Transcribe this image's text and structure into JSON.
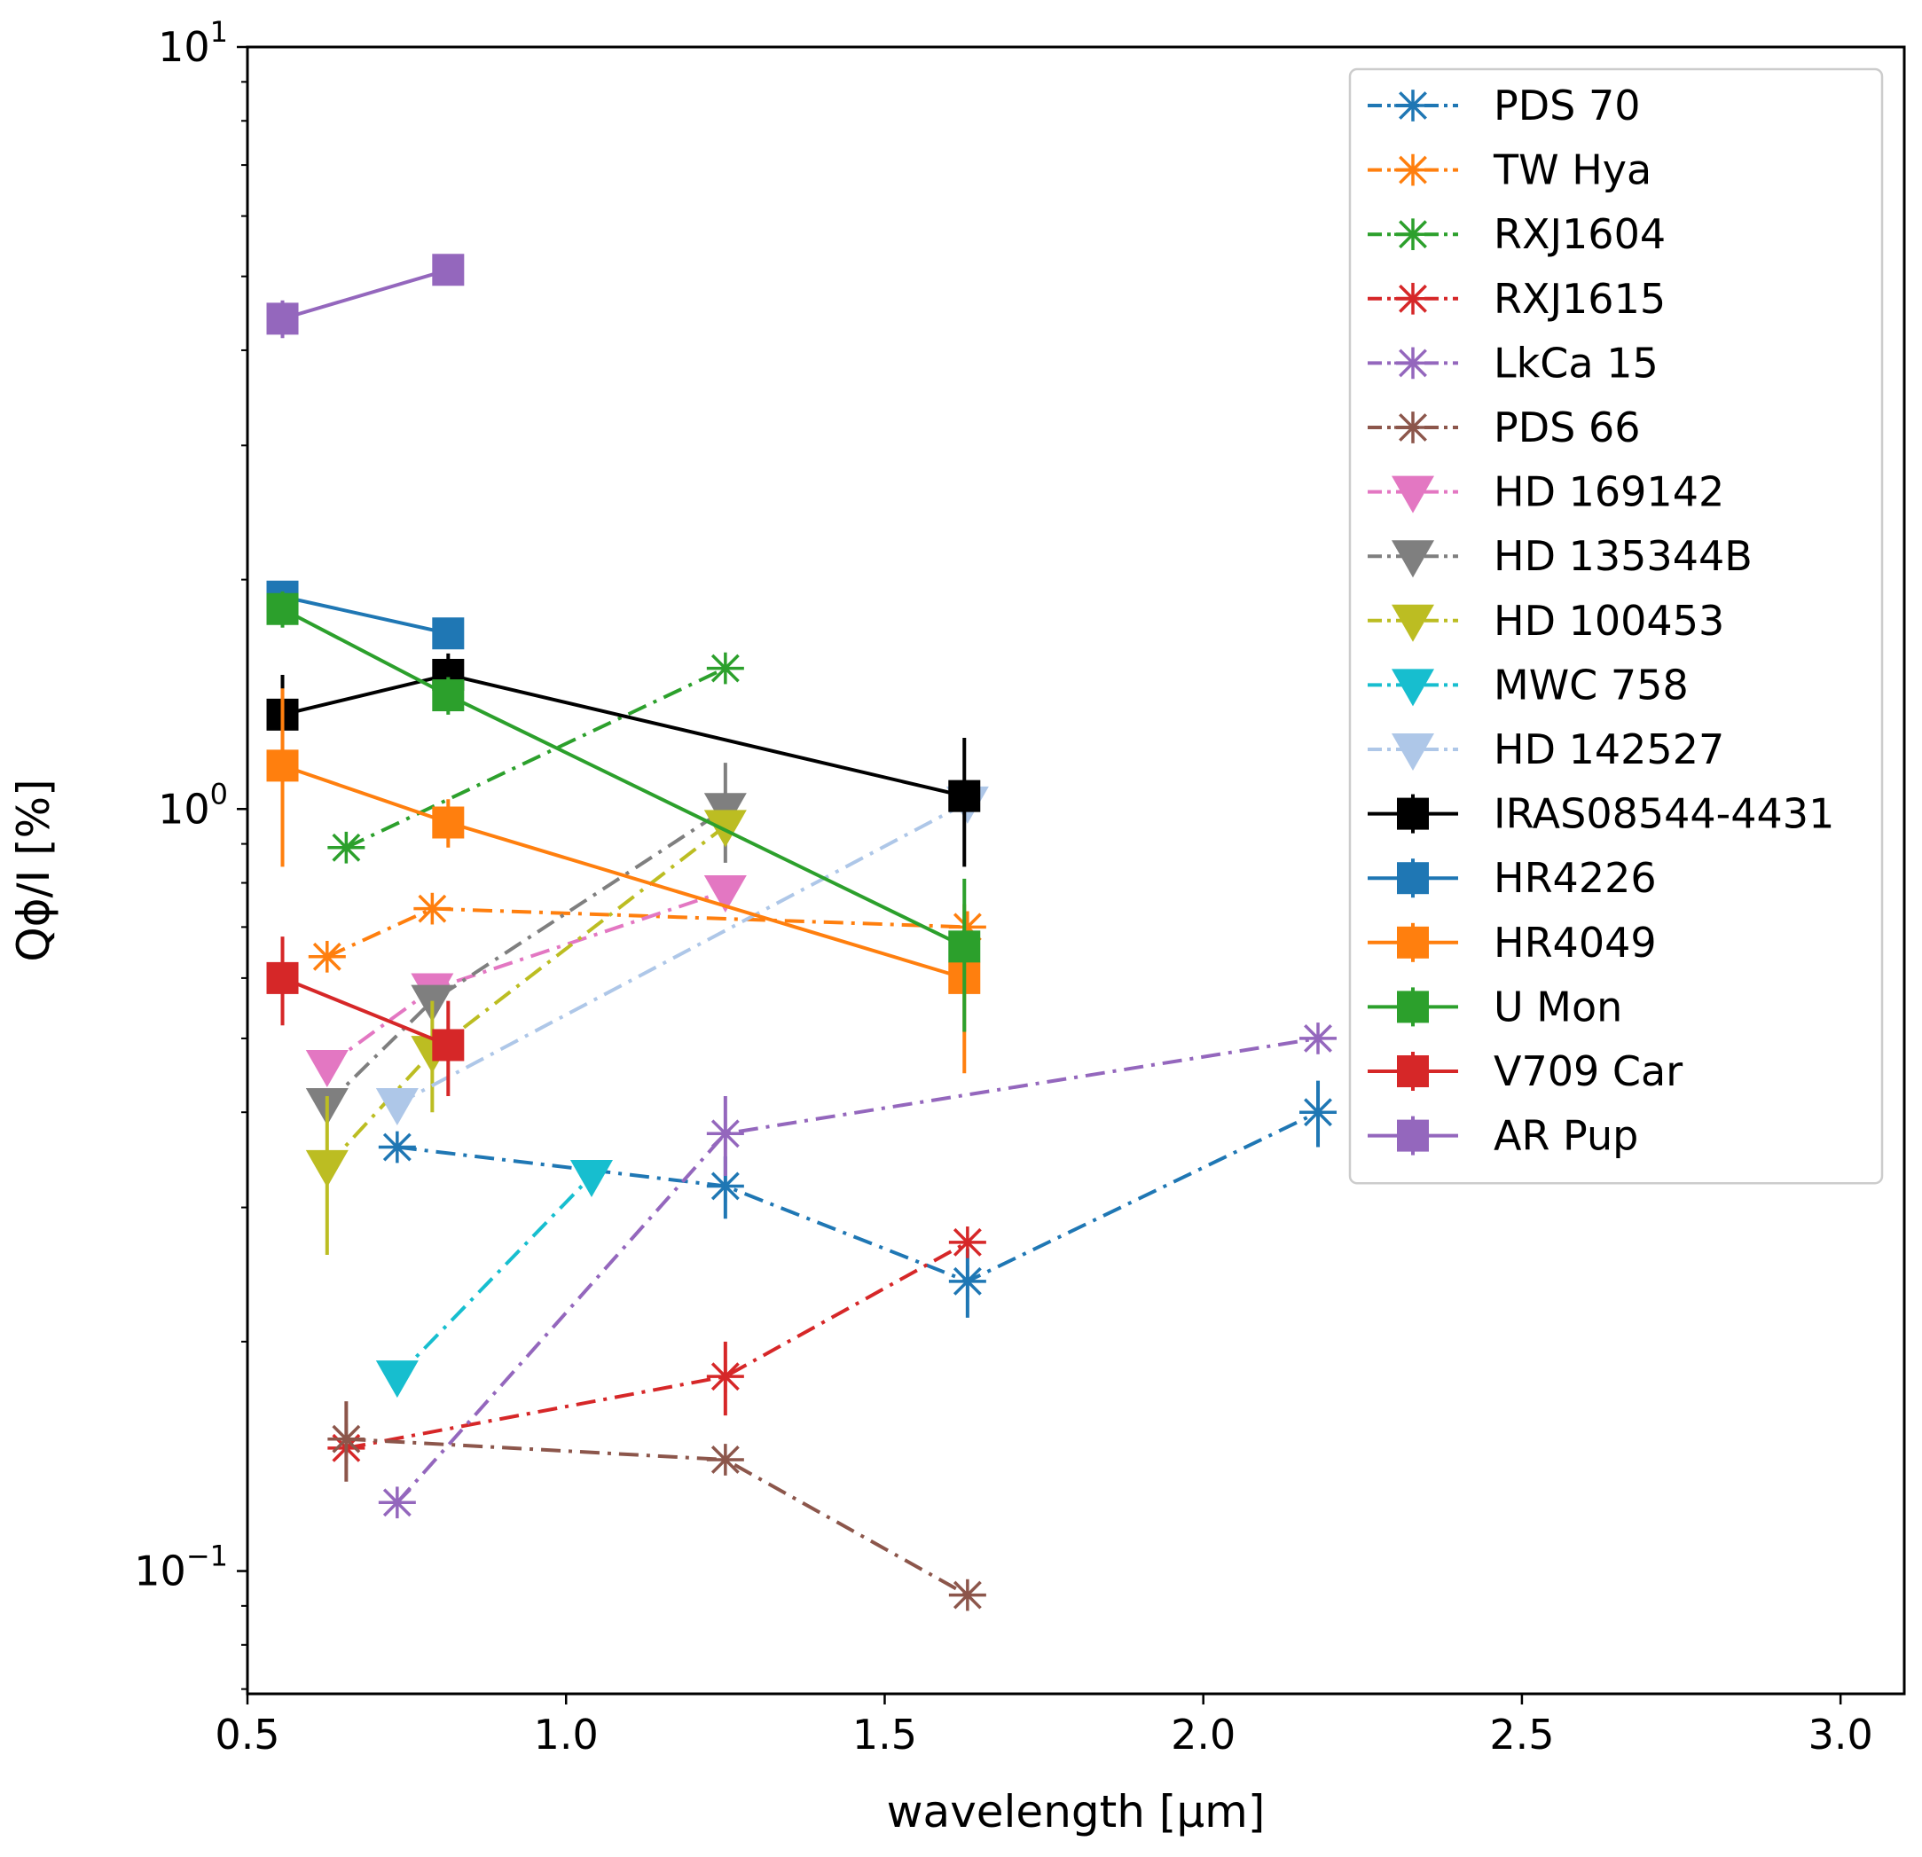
{
  "chart_data": {
    "type": "scatter",
    "xlabel": "wavelength [μm]",
    "ylabel": "Qϕ/I [%]",
    "xscale": "linear",
    "yscale": "log",
    "xlim": [
      0.5,
      3.1
    ],
    "ylim": [
      0.069,
      10
    ],
    "xticks": [
      0.5,
      1.0,
      1.5,
      2.0,
      2.5,
      3.0
    ],
    "xtick_labels": [
      "0.5",
      "1.0",
      "1.5",
      "2.0",
      "2.5",
      "3.0"
    ],
    "yticks": [
      {
        "value": 10,
        "base": "10",
        "exp": "1"
      },
      {
        "value": 1,
        "base": "10",
        "exp": "0"
      },
      {
        "value": 0.1,
        "base": "10",
        "exp": "−1"
      }
    ],
    "legend_position": "upper right",
    "series": [
      {
        "name": "PDS 70",
        "color": "#1f77b4",
        "marker": "asterisk",
        "linestyle": "dashdot",
        "x": [
          0.735,
          1.25,
          1.63,
          2.18
        ],
        "y": [
          0.36,
          0.32,
          0.24,
          0.4
        ],
        "err": [
          0.0,
          0.03,
          0.025,
          0.04
        ]
      },
      {
        "name": "TW Hya",
        "color": "#ff7f0e",
        "marker": "asterisk",
        "linestyle": "dashdot",
        "x": [
          0.625,
          0.79,
          1.63
        ],
        "y": [
          0.64,
          0.74,
          0.7
        ],
        "err": [
          0.0,
          0.0,
          0.0
        ]
      },
      {
        "name": "RXJ1604",
        "color": "#2ca02c",
        "marker": "asterisk",
        "linestyle": "dashdot",
        "x": [
          0.655,
          1.25
        ],
        "y": [
          0.89,
          1.53
        ],
        "err": [
          0.0,
          0.0
        ]
      },
      {
        "name": "RXJ1615",
        "color": "#d62728",
        "marker": "asterisk",
        "linestyle": "dashdot",
        "x": [
          0.655,
          1.25,
          1.63
        ],
        "y": [
          0.145,
          0.18,
          0.27
        ],
        "err": [
          0.0,
          0.02,
          0.0
        ]
      },
      {
        "name": "LkCa 15",
        "color": "#9467bd",
        "marker": "asterisk",
        "linestyle": "dashdot",
        "x": [
          0.735,
          1.25,
          2.18
        ],
        "y": [
          0.123,
          0.375,
          0.5
        ],
        "err": [
          0.0,
          0.045,
          0.0
        ]
      },
      {
        "name": "PDS 66",
        "color": "#8c564b",
        "marker": "asterisk",
        "linestyle": "dashdot",
        "x": [
          0.655,
          1.25,
          1.63
        ],
        "y": [
          0.149,
          0.14,
          0.093
        ],
        "err": [
          0.018,
          0.0,
          0.0
        ]
      },
      {
        "name": "HD 169142",
        "color": "#e377c2",
        "marker": "triangle_down",
        "linestyle": "dashdot",
        "x": [
          0.625,
          0.79,
          1.25
        ],
        "y": [
          0.46,
          0.58,
          0.78
        ],
        "err": [
          0.0,
          0.0,
          0.0
        ]
      },
      {
        "name": "HD 135344B",
        "color": "#7f7f7f",
        "marker": "triangle_down",
        "linestyle": "dashdot",
        "x": [
          0.625,
          0.79,
          1.25
        ],
        "y": [
          0.41,
          0.56,
          1.0
        ],
        "err": [
          0.0,
          0.0,
          0.15
        ]
      },
      {
        "name": "HD 100453",
        "color": "#bcbd22",
        "marker": "triangle_down",
        "linestyle": "dashdot",
        "x": [
          0.625,
          0.79,
          1.25
        ],
        "y": [
          0.34,
          0.48,
          0.95
        ],
        "err": [
          0.08,
          0.08,
          0.0
        ]
      },
      {
        "name": "MWC 758",
        "color": "#17becf",
        "marker": "triangle_down",
        "linestyle": "dashdot",
        "x": [
          0.735,
          1.04
        ],
        "y": [
          0.18,
          0.33
        ],
        "err": [
          0.0,
          0.0
        ]
      },
      {
        "name": "HD 142527",
        "color": "#aec7e8",
        "marker": "triangle_down",
        "linestyle": "dashdot",
        "x": [
          0.735,
          1.63
        ],
        "y": [
          0.41,
          1.02
        ],
        "err": [
          0.0,
          0.0
        ]
      },
      {
        "name": "IRAS08544-4431",
        "color": "#000000",
        "marker": "square",
        "linestyle": "solid",
        "x": [
          0.555,
          0.815,
          1.625
        ],
        "y": [
          1.33,
          1.5,
          1.04
        ],
        "err": [
          0.17,
          0.1,
          0.2
        ]
      },
      {
        "name": "HR4226",
        "color": "#1f77b4",
        "marker": "square",
        "linestyle": "solid",
        "x": [
          0.555,
          0.815
        ],
        "y": [
          1.9,
          1.7
        ],
        "err": [
          0.0,
          0.0
        ]
      },
      {
        "name": "HR4049",
        "color": "#ff7f0e",
        "marker": "square",
        "linestyle": "solid",
        "x": [
          0.555,
          0.815,
          1.625
        ],
        "y": [
          1.14,
          0.96,
          0.6
        ],
        "err": [
          0.3,
          0.07,
          0.15
        ]
      },
      {
        "name": "U Mon",
        "color": "#2ca02c",
        "marker": "square",
        "linestyle": "solid",
        "x": [
          0.555,
          0.815,
          1.625
        ],
        "y": [
          1.83,
          1.41,
          0.66
        ],
        "err": [
          0.1,
          0.08,
          0.15
        ]
      },
      {
        "name": "V709 Car",
        "color": "#d62728",
        "marker": "square",
        "linestyle": "solid",
        "x": [
          0.555,
          0.815
        ],
        "y": [
          0.6,
          0.49
        ],
        "err": [
          0.08,
          0.07
        ]
      },
      {
        "name": "AR Pup",
        "color": "#9467bd",
        "marker": "square",
        "linestyle": "solid",
        "x": [
          0.555,
          0.815
        ],
        "y": [
          4.4,
          5.1
        ],
        "err": [
          0.25,
          0.0
        ]
      }
    ]
  }
}
